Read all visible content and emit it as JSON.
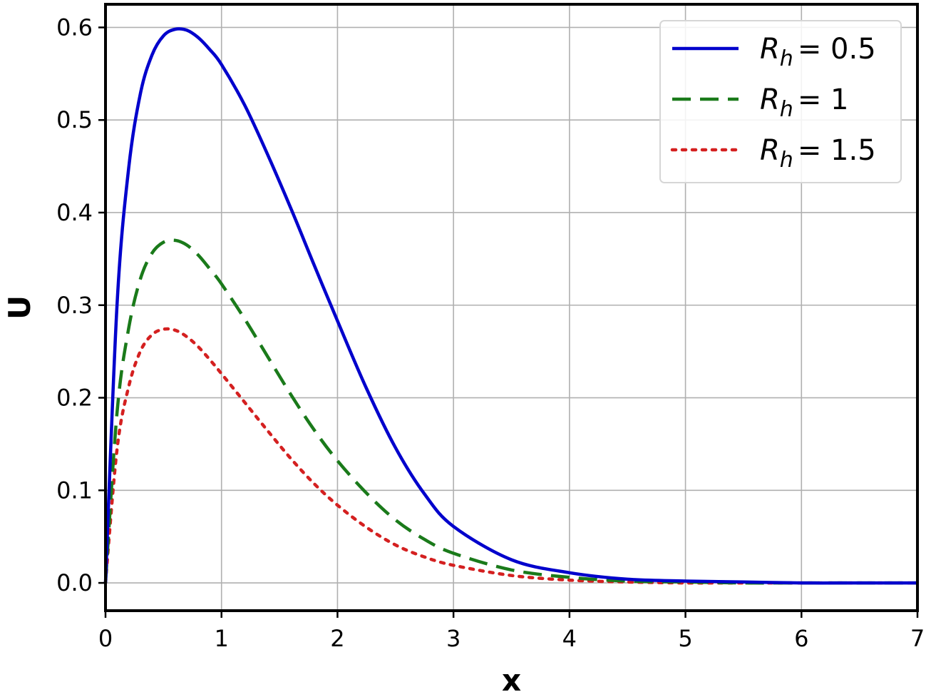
{
  "chart_data": {
    "type": "line",
    "title": "",
    "xlabel": "x",
    "ylabel": "U",
    "xlim": [
      0,
      7
    ],
    "ylim": [
      -0.03,
      0.625
    ],
    "xticks": [
      0,
      1,
      2,
      3,
      4,
      5,
      6,
      7
    ],
    "xtick_labels": [
      "0",
      "1",
      "2",
      "3",
      "4",
      "5",
      "6",
      "7"
    ],
    "yticks": [
      0.0,
      0.1,
      0.2,
      0.3,
      0.4,
      0.5,
      0.6
    ],
    "ytick_labels": [
      "0.0",
      "0.1",
      "0.2",
      "0.3",
      "0.4",
      "0.5",
      "0.6"
    ],
    "grid": true,
    "legend_position": "top-right",
    "x": [
      0,
      0.1,
      0.2,
      0.3,
      0.4,
      0.5,
      0.6,
      0.7,
      0.8,
      0.9,
      1.0,
      1.2,
      1.4,
      1.6,
      1.8,
      2.0,
      2.25,
      2.5,
      2.75,
      3.0,
      3.5,
      4.0,
      4.5,
      5.0,
      5.5,
      6.0,
      6.5,
      7.0
    ],
    "series": [
      {
        "name_symbol": "R",
        "name_sub": "h",
        "name_value": "= 0.5",
        "color": "#0000cc",
        "style": "solid",
        "values": [
          0,
          0.302,
          0.448,
          0.528,
          0.57,
          0.591,
          0.598,
          0.597,
          0.589,
          0.576,
          0.56,
          0.516,
          0.462,
          0.404,
          0.343,
          0.283,
          0.21,
          0.146,
          0.096,
          0.061,
          0.025,
          0.011,
          0.004,
          0.002,
          0.001,
          0.0,
          0.0,
          0.0
        ]
      },
      {
        "name_symbol": "R",
        "name_sub": "h",
        "name_value": "= 1",
        "color": "#1a7a1a",
        "style": "dashed",
        "values": [
          0,
          0.185,
          0.275,
          0.328,
          0.356,
          0.368,
          0.37,
          0.365,
          0.354,
          0.339,
          0.323,
          0.285,
          0.244,
          0.203,
          0.165,
          0.132,
          0.097,
          0.068,
          0.047,
          0.032,
          0.014,
          0.006,
          0.002,
          0.001,
          0.0,
          0.0,
          0.0,
          0.0
        ]
      },
      {
        "name_symbol": "R",
        "name_sub": "h",
        "name_value": "= 1.5",
        "color": "#d42020",
        "style": "dotted",
        "values": [
          0,
          0.145,
          0.212,
          0.25,
          0.268,
          0.274,
          0.273,
          0.266,
          0.255,
          0.241,
          0.226,
          0.195,
          0.164,
          0.134,
          0.107,
          0.084,
          0.06,
          0.041,
          0.028,
          0.019,
          0.008,
          0.003,
          0.001,
          0.0,
          0.0,
          0.0,
          0.0,
          0.0
        ]
      }
    ]
  }
}
